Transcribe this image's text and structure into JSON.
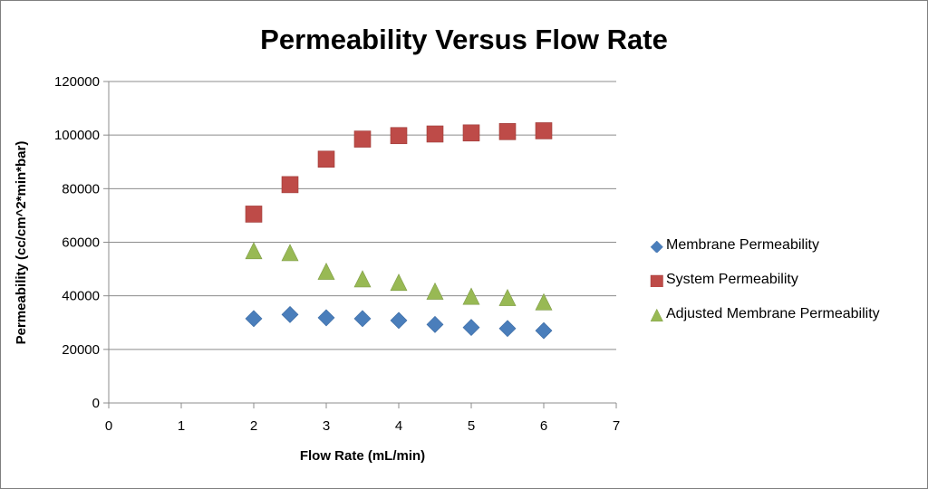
{
  "chart_data": {
    "type": "scatter",
    "title": "Permeability Versus Flow Rate",
    "xlabel": "Flow Rate (mL/min)",
    "ylabel": "Permeability (cc/cm^2*min*bar)",
    "xlim": [
      0,
      7
    ],
    "ylim": [
      0,
      120000
    ],
    "xticks": [
      "0",
      "1",
      "2",
      "3",
      "4",
      "5",
      "6",
      "7"
    ],
    "yticks": [
      "0",
      "20000",
      "40000",
      "60000",
      "80000",
      "100000",
      "120000"
    ],
    "grid": "horizontal",
    "legend_position": "right",
    "series": [
      {
        "name": "Membrane Permeability",
        "marker": "diamond",
        "color": "#4a7ebb",
        "x": [
          2,
          2.5,
          3,
          3.5,
          4,
          4.5,
          5,
          5.5,
          6
        ],
        "y": [
          31500,
          33000,
          31800,
          31500,
          30800,
          29300,
          28200,
          27800,
          27000
        ]
      },
      {
        "name": "System Permeability",
        "marker": "square",
        "color": "#be4b48",
        "x": [
          2,
          2.5,
          3,
          3.5,
          4,
          4.5,
          5,
          5.5,
          6
        ],
        "y": [
          70500,
          81500,
          91000,
          98500,
          99800,
          100400,
          100800,
          101300,
          101600
        ]
      },
      {
        "name": "Adjusted Membrane Permeability",
        "marker": "triangle",
        "color": "#98b954",
        "x": [
          2,
          2.5,
          3,
          3.5,
          4,
          4.5,
          5,
          5.5,
          6
        ],
        "y": [
          56500,
          55800,
          48800,
          46000,
          44700,
          41400,
          39500,
          39000,
          37400
        ]
      }
    ]
  }
}
